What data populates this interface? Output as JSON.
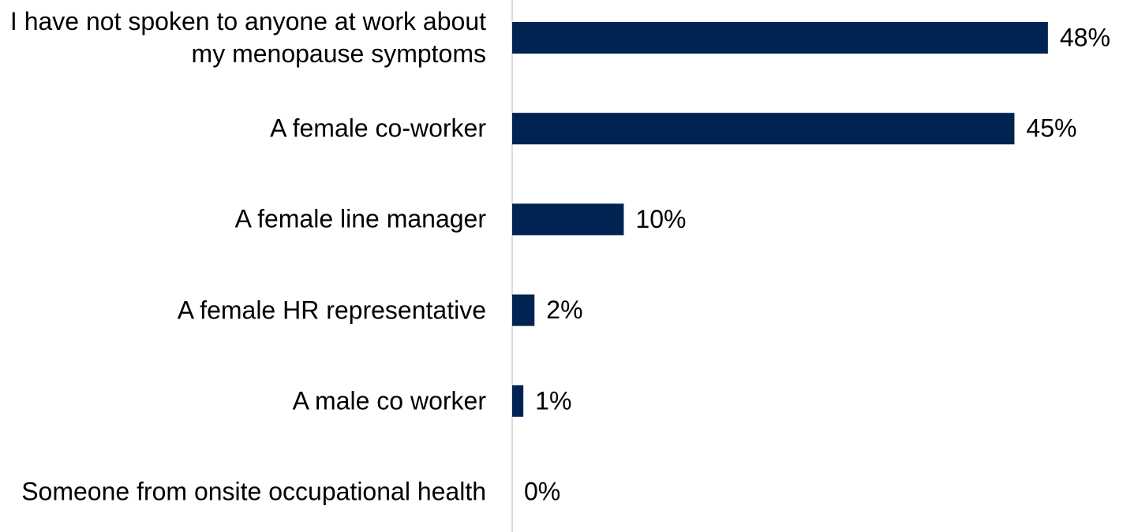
{
  "chart_data": {
    "type": "bar",
    "orientation": "horizontal",
    "categories": [
      "I have not spoken to anyone at work about my menopause symptoms",
      "A female co-worker",
      "A female line manager",
      "A female HR representative",
      "A male co worker",
      "Someone from onsite occupational health"
    ],
    "values": [
      48,
      45,
      10,
      2,
      1,
      0
    ],
    "value_labels": [
      "48%",
      "45%",
      "10%",
      "2%",
      "1%",
      "0%"
    ],
    "color": "#002352",
    "xlim": [
      0,
      56
    ]
  }
}
